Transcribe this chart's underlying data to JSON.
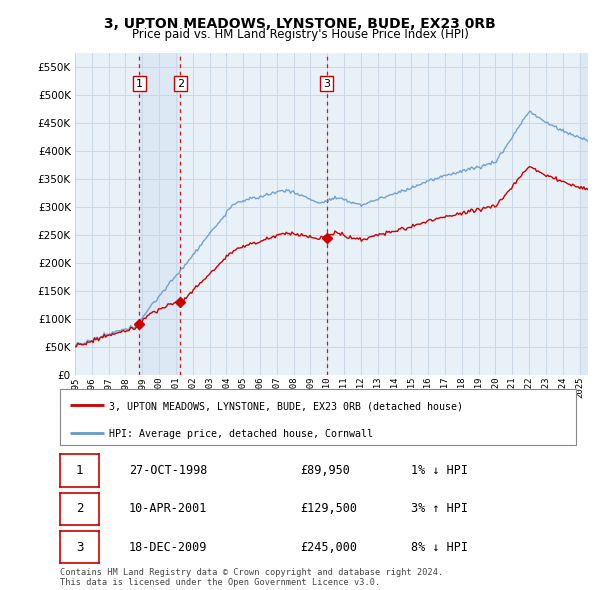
{
  "title": "3, UPTON MEADOWS, LYNSTONE, BUDE, EX23 0RB",
  "subtitle": "Price paid vs. HM Land Registry's House Price Index (HPI)",
  "ylim": [
    0,
    575000
  ],
  "yticks": [
    0,
    50000,
    100000,
    150000,
    200000,
    250000,
    300000,
    350000,
    400000,
    450000,
    500000,
    550000
  ],
  "background_color": "#ffffff",
  "chart_bg_color": "#e8f0f8",
  "grid_color": "#c8d8e8",
  "property_color": "#cc0000",
  "hpi_color": "#6699cc",
  "sale_marker_color": "#cc0000",
  "dashed_line_color": "#cc0000",
  "sales": [
    {
      "date_num": 1998.82,
      "price": 89950,
      "label": "1"
    },
    {
      "date_num": 2001.27,
      "price": 129500,
      "label": "2"
    },
    {
      "date_num": 2009.96,
      "price": 245000,
      "label": "3"
    }
  ],
  "table_rows": [
    {
      "num": "1",
      "date": "27-OCT-1998",
      "price": "£89,950",
      "hpi": "1% ↓ HPI"
    },
    {
      "num": "2",
      "date": "10-APR-2001",
      "price": "£129,500",
      "hpi": "3% ↑ HPI"
    },
    {
      "num": "3",
      "date": "18-DEC-2009",
      "price": "£245,000",
      "hpi": "8% ↓ HPI"
    }
  ],
  "legend_property": "3, UPTON MEADOWS, LYNSTONE, BUDE, EX23 0RB (detached house)",
  "legend_hpi": "HPI: Average price, detached house, Cornwall",
  "footnote": "Contains HM Land Registry data © Crown copyright and database right 2024.\nThis data is licensed under the Open Government Licence v3.0.",
  "xmin": 1995,
  "xmax": 2025.5
}
